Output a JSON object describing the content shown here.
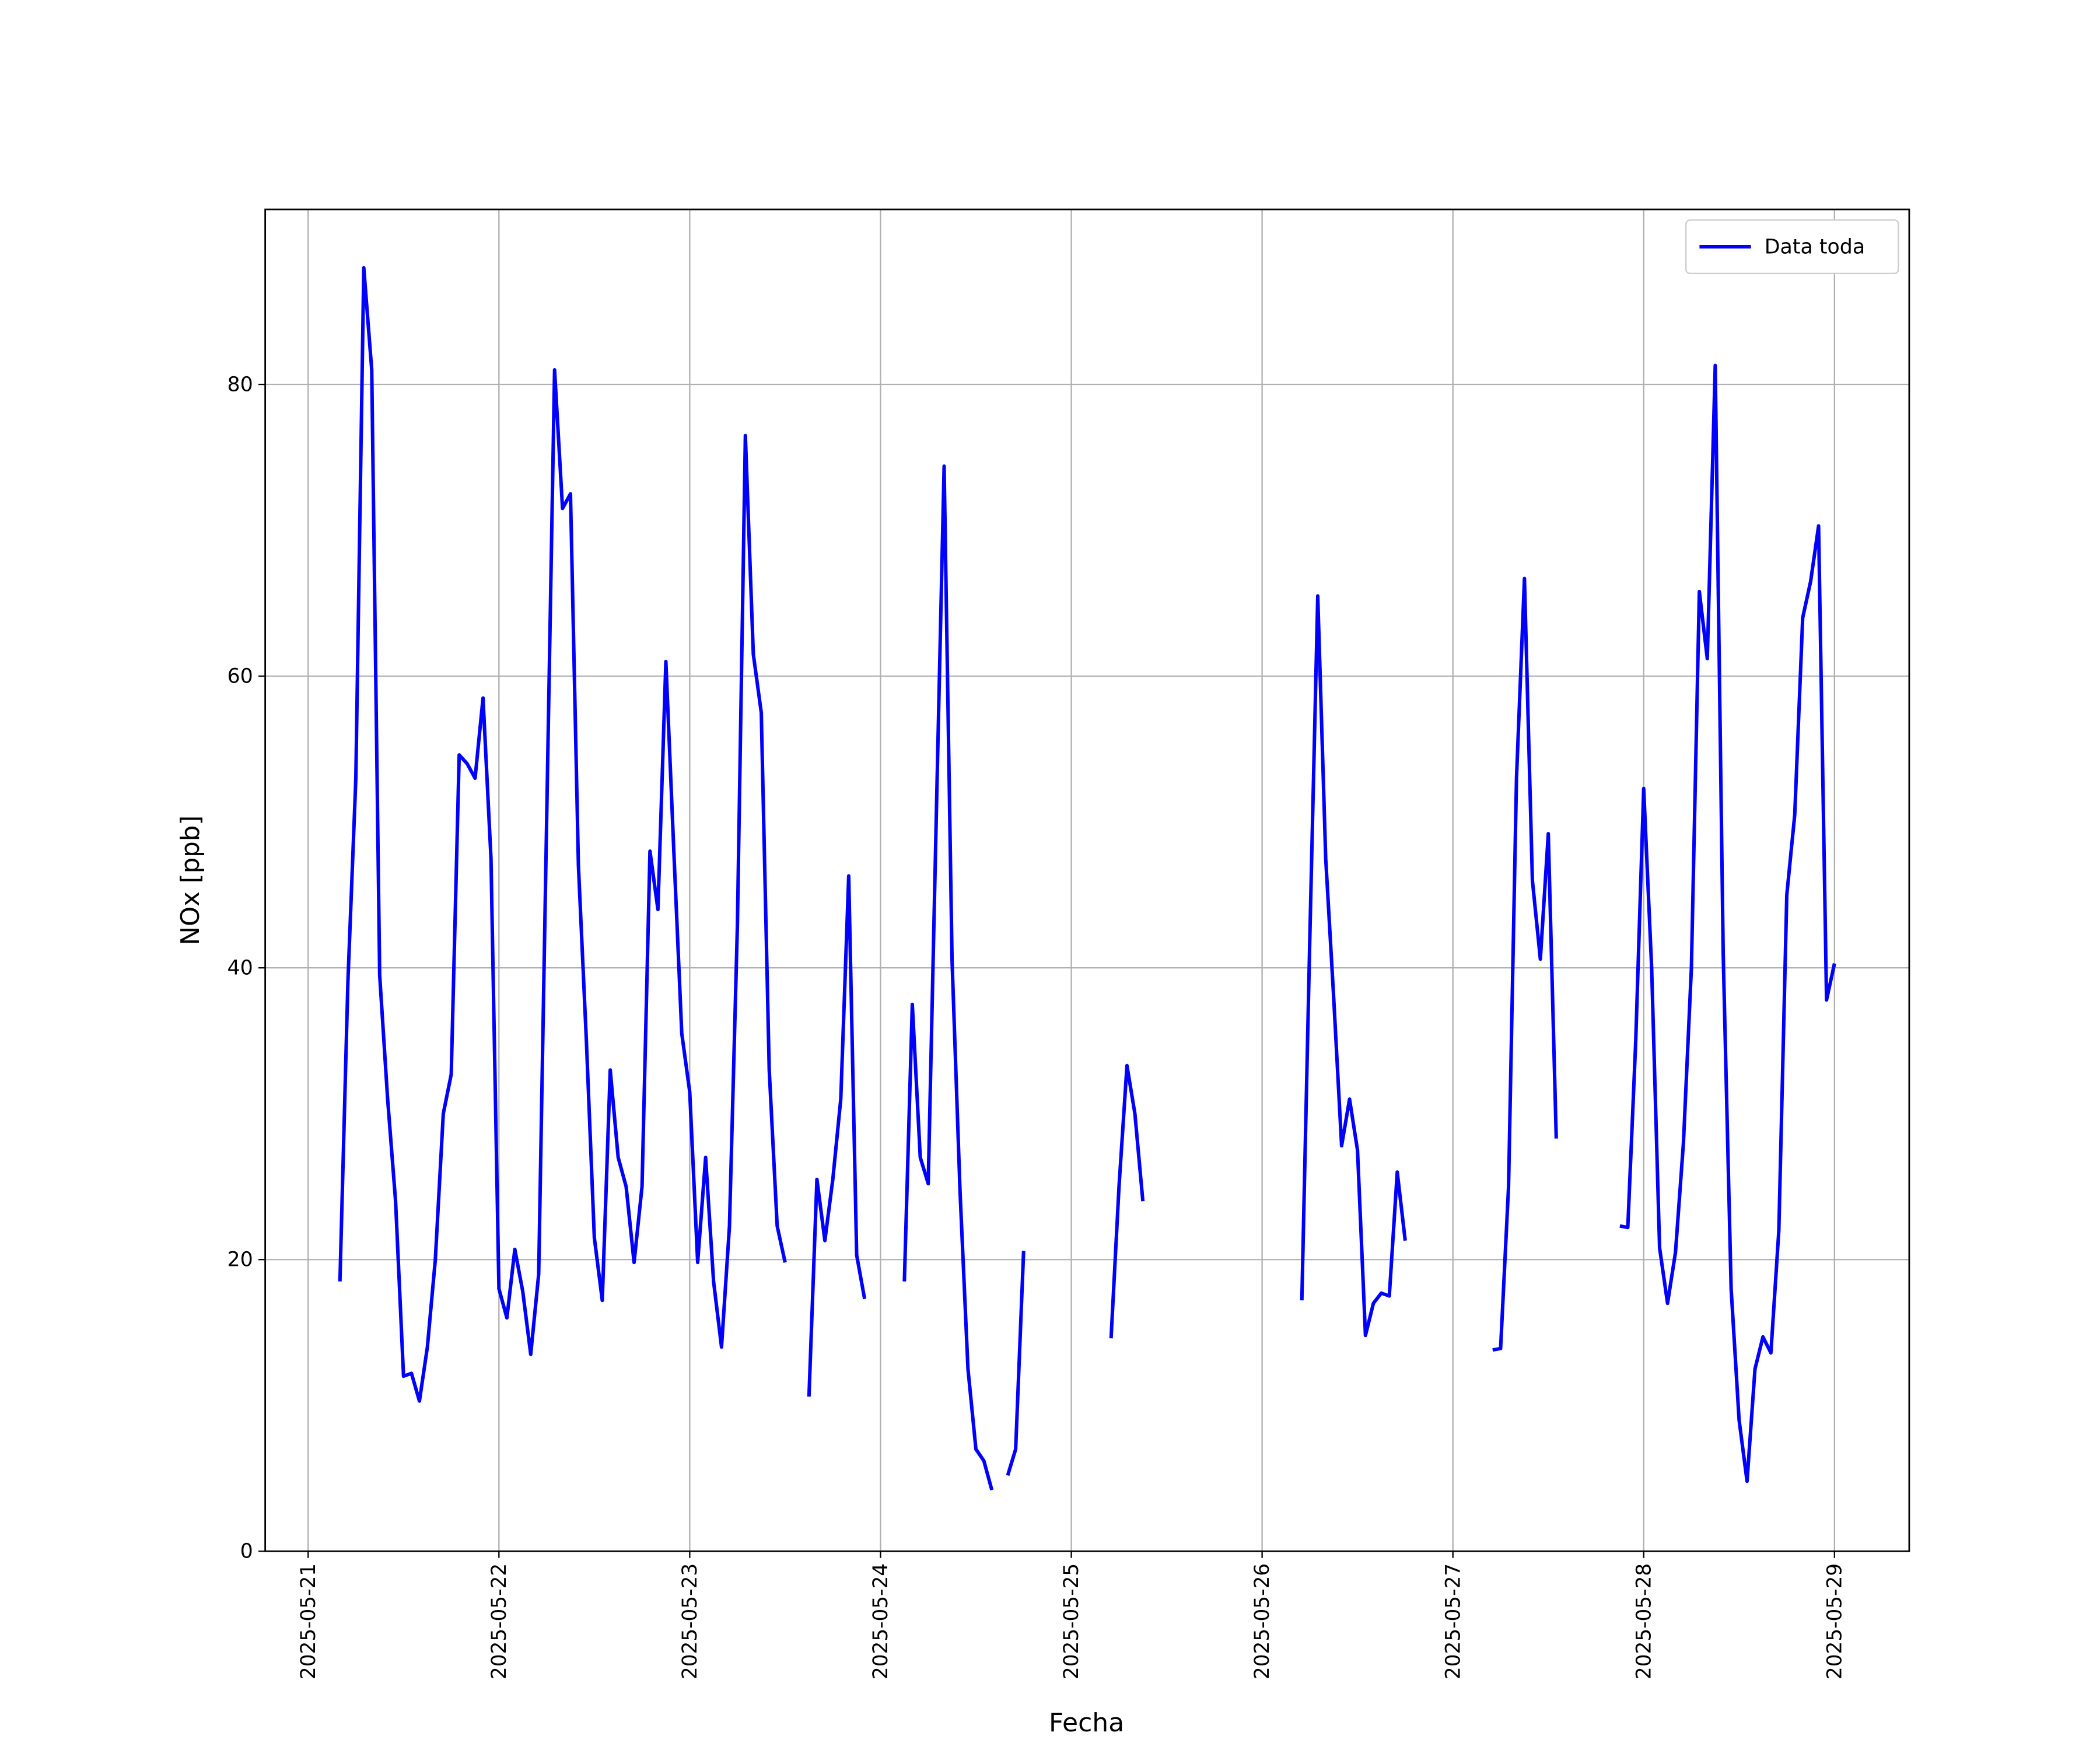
{
  "chart_data": {
    "type": "line",
    "xlabel": "Fecha",
    "ylabel": "NOx [ppb]",
    "xlim": [
      "2025-05-20 18:36",
      "2025-05-29 09:24"
    ],
    "xticks": [
      "2025-05-21",
      "2025-05-22",
      "2025-05-23",
      "2025-05-24",
      "2025-05-25",
      "2025-05-26",
      "2025-05-27",
      "2025-05-28",
      "2025-05-29"
    ],
    "ylim": [
      0,
      92
    ],
    "yticks": [
      0,
      20,
      40,
      60,
      80
    ],
    "grid": true,
    "legend": "upper right",
    "x": [
      "2025-05-21 04:00",
      "2025-05-21 05:00",
      "2025-05-21 06:00",
      "2025-05-21 07:00",
      "2025-05-21 08:00",
      "2025-05-21 09:00",
      "2025-05-21 10:00",
      "2025-05-21 11:00",
      "2025-05-21 12:00",
      "2025-05-21 13:00",
      "2025-05-21 14:00",
      "2025-05-21 15:00",
      "2025-05-21 16:00",
      "2025-05-21 17:00",
      "2025-05-21 18:00",
      "2025-05-21 19:00",
      "2025-05-21 20:00",
      "2025-05-21 21:00",
      "2025-05-21 22:00",
      "2025-05-21 23:00",
      "2025-05-22 00:00",
      "2025-05-22 01:00",
      "2025-05-22 02:00",
      "2025-05-22 03:00",
      "2025-05-22 04:00",
      "2025-05-22 05:00",
      "2025-05-22 06:00",
      "2025-05-22 07:00",
      "2025-05-22 08:00",
      "2025-05-22 09:00",
      "2025-05-22 10:00",
      "2025-05-22 11:00",
      "2025-05-22 12:00",
      "2025-05-22 13:00",
      "2025-05-22 14:00",
      "2025-05-22 15:00",
      "2025-05-22 16:00",
      "2025-05-22 17:00",
      "2025-05-22 18:00",
      "2025-05-22 19:00",
      "2025-05-22 20:00",
      "2025-05-22 21:00",
      "2025-05-22 22:00",
      "2025-05-22 23:00",
      "2025-05-23 00:00",
      "2025-05-23 01:00",
      "2025-05-23 02:00",
      "2025-05-23 03:00",
      "2025-05-23 04:00",
      "2025-05-23 05:00",
      "2025-05-23 06:00",
      "2025-05-23 07:00",
      "2025-05-23 08:00",
      "2025-05-23 09:00",
      "2025-05-23 10:00",
      "2025-05-23 11:00",
      "2025-05-23 12:00",
      "2025-05-23 13:00",
      "2025-05-23 14:00",
      "2025-05-23 15:00",
      "2025-05-23 16:00",
      "2025-05-23 17:00",
      "2025-05-23 18:00",
      "2025-05-23 19:00",
      "2025-05-23 20:00",
      "2025-05-23 21:00",
      "2025-05-23 22:00",
      "2025-05-23 23:00",
      "2025-05-24 00:00",
      "2025-05-24 01:00",
      "2025-05-24 02:00",
      "2025-05-24 03:00",
      "2025-05-24 04:00",
      "2025-05-24 05:00",
      "2025-05-24 06:00",
      "2025-05-24 07:00",
      "2025-05-24 08:00",
      "2025-05-24 09:00",
      "2025-05-24 10:00",
      "2025-05-24 11:00",
      "2025-05-24 12:00",
      "2025-05-24 13:00",
      "2025-05-24 14:00",
      "2025-05-24 15:00",
      "2025-05-24 16:00",
      "2025-05-24 17:00",
      "2025-05-24 18:00",
      "2025-05-24 19:00",
      "2025-05-24 20:00",
      "2025-05-24 21:00",
      "2025-05-24 22:00",
      "2025-05-24 23:00",
      "2025-05-25 00:00",
      "2025-05-25 01:00",
      "2025-05-25 02:00",
      "2025-05-25 03:00",
      "2025-05-25 04:00",
      "2025-05-25 05:00",
      "2025-05-25 06:00",
      "2025-05-25 07:00",
      "2025-05-25 08:00",
      "2025-05-25 09:00",
      "2025-05-25 10:00",
      "2025-05-25 11:00",
      "2025-05-25 12:00",
      "2025-05-25 13:00",
      "2025-05-25 14:00",
      "2025-05-25 15:00",
      "2025-05-25 16:00",
      "2025-05-25 17:00",
      "2025-05-25 18:00",
      "2025-05-25 19:00",
      "2025-05-25 20:00",
      "2025-05-25 21:00",
      "2025-05-25 22:00",
      "2025-05-25 23:00",
      "2025-05-26 00:00",
      "2025-05-26 01:00",
      "2025-05-26 02:00",
      "2025-05-26 03:00",
      "2025-05-26 04:00",
      "2025-05-26 05:00",
      "2025-05-26 06:00",
      "2025-05-26 07:00",
      "2025-05-26 08:00",
      "2025-05-26 09:00",
      "2025-05-26 10:00",
      "2025-05-26 11:00",
      "2025-05-26 12:00",
      "2025-05-26 13:00",
      "2025-05-26 14:00",
      "2025-05-26 15:00",
      "2025-05-26 16:00",
      "2025-05-26 17:00",
      "2025-05-26 18:00",
      "2025-05-26 19:00",
      "2025-05-26 20:00",
      "2025-05-26 21:00",
      "2025-05-26 22:00",
      "2025-05-26 23:00",
      "2025-05-27 00:00",
      "2025-05-27 01:00",
      "2025-05-27 02:00",
      "2025-05-27 03:00",
      "2025-05-27 04:00",
      "2025-05-27 05:00",
      "2025-05-27 06:00",
      "2025-05-27 07:00",
      "2025-05-27 08:00",
      "2025-05-27 09:00",
      "2025-05-27 10:00",
      "2025-05-27 11:00",
      "2025-05-27 12:00",
      "2025-05-27 13:00",
      "2025-05-27 14:00",
      "2025-05-27 15:00",
      "2025-05-27 16:00",
      "2025-05-27 17:00",
      "2025-05-27 18:00",
      "2025-05-27 19:00",
      "2025-05-27 20:00",
      "2025-05-27 21:00",
      "2025-05-27 22:00",
      "2025-05-27 23:00",
      "2025-05-28 00:00",
      "2025-05-28 01:00",
      "2025-05-28 02:00",
      "2025-05-28 03:00",
      "2025-05-28 04:00",
      "2025-05-28 05:00",
      "2025-05-28 06:00",
      "2025-05-28 07:00",
      "2025-05-28 08:00",
      "2025-05-28 09:00",
      "2025-05-28 10:00",
      "2025-05-28 11:00",
      "2025-05-28 12:00",
      "2025-05-28 13:00",
      "2025-05-28 14:00",
      "2025-05-28 15:00",
      "2025-05-28 16:00",
      "2025-05-28 17:00",
      "2025-05-28 18:00",
      "2025-05-28 19:00",
      "2025-05-28 20:00",
      "2025-05-28 21:00",
      "2025-05-28 22:00",
      "2025-05-28 23:00",
      "2025-05-29 00:00"
    ],
    "series": [
      {
        "name": "Data toda",
        "color": "#0000ff",
        "values": [
          18.5,
          39,
          53,
          88,
          81,
          39.5,
          31,
          24,
          12,
          12.2,
          10.3,
          14,
          20,
          30,
          32.7,
          54.6,
          54,
          53,
          58.5,
          47.5,
          18,
          16,
          20.7,
          17.8,
          13.5,
          19,
          50,
          81,
          71.5,
          72.5,
          47,
          35,
          21.5,
          17.2,
          33,
          27,
          25,
          19.8,
          25,
          48,
          44,
          61,
          48,
          35.5,
          31.5,
          19.8,
          27,
          18.5,
          14,
          22.3,
          43,
          76.5,
          61.5,
          57.5,
          33,
          22.3,
          19.8,
          null,
          null,
          10.6,
          25.5,
          21.3,
          25.5,
          31,
          46.3,
          20.3,
          17.3,
          null,
          null,
          null,
          null,
          18.5,
          37.5,
          27,
          25.2,
          50,
          74.4,
          40.5,
          24.7,
          12.5,
          7,
          6.2,
          4.2,
          null,
          5.2,
          7,
          20.6,
          null,
          null,
          null,
          null,
          null,
          null,
          null,
          null,
          null,
          null,
          14.6,
          25,
          33.3,
          30,
          24,
          null,
          null,
          null,
          null,
          null,
          null,
          null,
          null,
          null,
          null,
          null,
          null,
          null,
          null,
          null,
          null,
          null,
          null,
          null,
          17.2,
          42,
          65.5,
          47.5,
          38,
          27.8,
          31,
          27.5,
          14.8,
          17,
          17.7,
          17.5,
          26,
          21.3,
          null,
          null,
          null,
          null,
          null,
          null,
          null,
          null,
          null,
          null,
          13.8,
          13.9,
          25,
          53,
          66.7,
          46,
          40.6,
          49.2,
          28.3,
          null,
          null,
          null,
          null,
          null,
          null,
          null,
          22.3,
          22.2,
          35,
          52.3,
          40,
          20.8,
          17,
          20.5,
          28,
          40,
          65.8,
          61.2,
          81.3,
          41,
          18,
          9,
          4.8,
          12.5,
          14.7,
          13.6,
          22,
          45,
          50.5,
          64,
          66.5,
          70.3,
          37.8,
          40.3
        ]
      }
    ]
  }
}
